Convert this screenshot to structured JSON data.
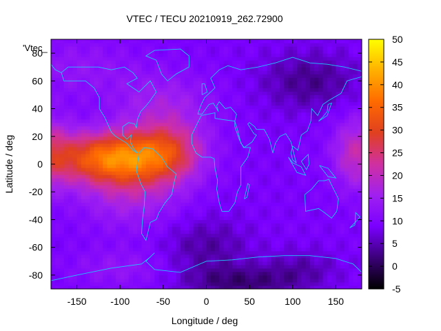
{
  "chart_data": {
    "type": "heatmap",
    "title": "VTEC / TECU 20210919_262.72900",
    "xlabel": "Longitude / deg",
    "ylabel": "Latitude / deg",
    "legend_entry": "'Vtec_",
    "xlim": [
      -180,
      180
    ],
    "ylim": [
      -90,
      90
    ],
    "x_ticks": [
      -150,
      -100,
      -50,
      0,
      50,
      100,
      150
    ],
    "y_ticks": [
      -80,
      -60,
      -40,
      -20,
      0,
      20,
      40,
      60,
      80
    ],
    "colorbar": {
      "min": -5,
      "max": 50,
      "ticks": [
        -5,
        0,
        5,
        10,
        15,
        20,
        25,
        30,
        35,
        40,
        45,
        50
      ],
      "palette": [
        "#000000",
        "#3b0078",
        "#7a00ff",
        "#a020f0",
        "#d030a0",
        "#e04020",
        "#ff6a00",
        "#ffb000",
        "#ffff00"
      ]
    },
    "overlay": "coastlines",
    "overlay_color": "#1ec8ff",
    "grid": false
  }
}
